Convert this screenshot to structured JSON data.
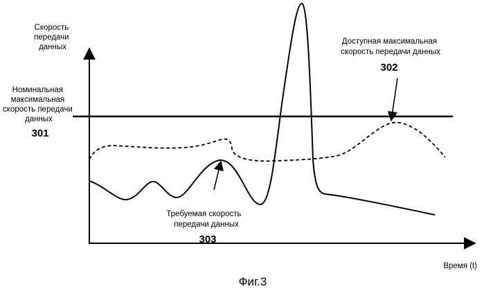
{
  "y_axis_label": [
    "Скорость",
    "передачи",
    "данных"
  ],
  "x_axis_label": "Время (t)",
  "nominal_max": {
    "lines": [
      "Номинальная",
      "максимальная",
      "скорость передачи",
      "данных"
    ],
    "ref": "301"
  },
  "available_max": {
    "lines": [
      "Доступная максимальная",
      "скорость передачи данных"
    ],
    "ref": "302"
  },
  "required": {
    "lines": [
      "Требуемая скорость",
      "передачи данных"
    ],
    "ref": "303"
  },
  "caption": "Фиг.3"
}
